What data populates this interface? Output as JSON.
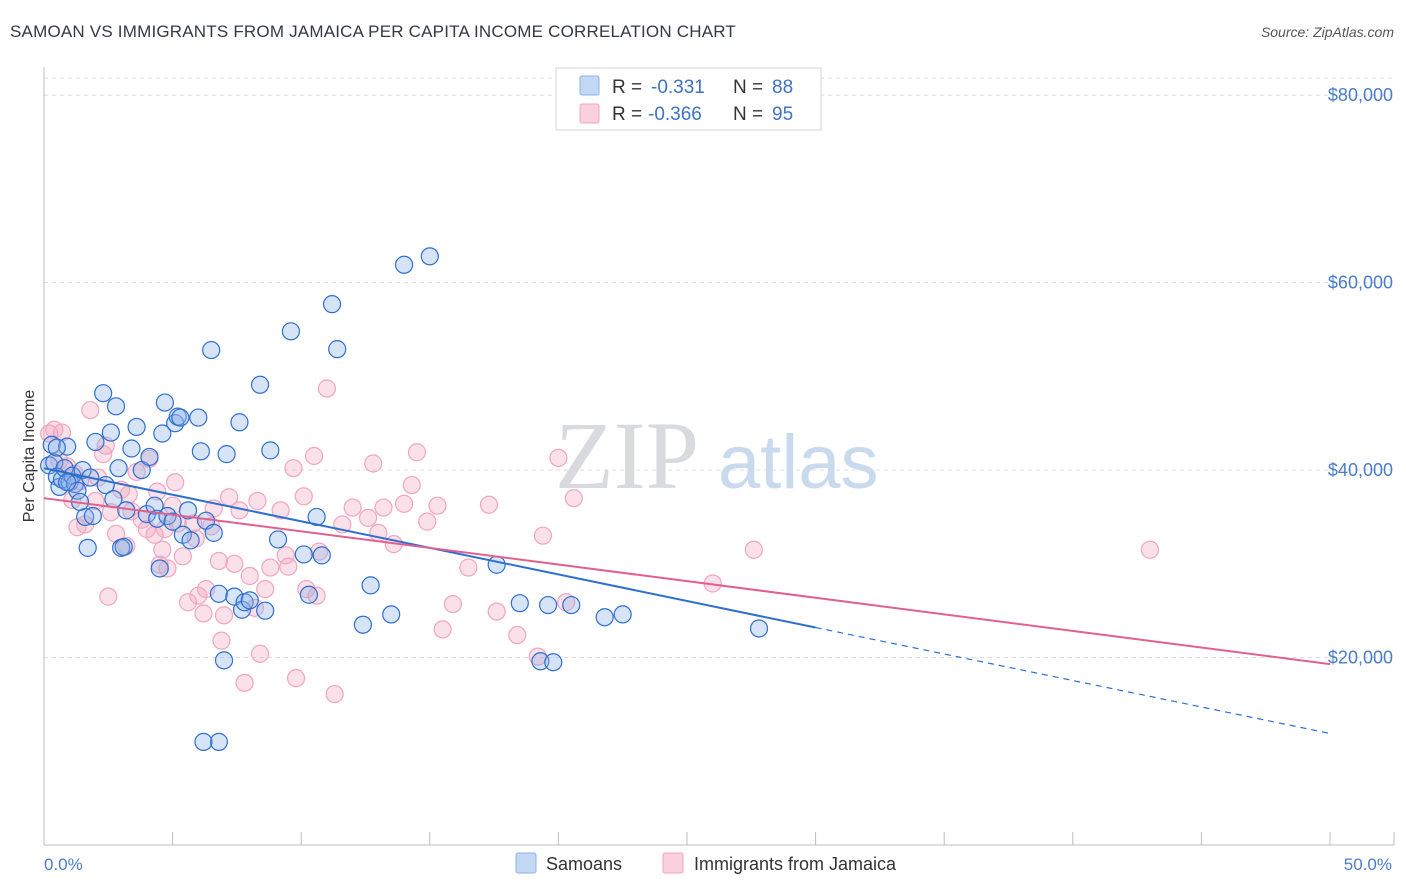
{
  "header": {
    "title": "SAMOAN VS IMMIGRANTS FROM JAMAICA PER CAPITA INCOME CORRELATION CHART",
    "source": "Source: ZipAtlas.com"
  },
  "watermark": {
    "zip": "ZIP",
    "atlas": "atlas"
  },
  "colors": {
    "samoan": "#8bb3e8",
    "samoan_line": "#2e6fcf",
    "jamaica": "#f2a5bf",
    "jamaica_line": "#e0608f",
    "tick_text": "#4a7cc9",
    "grid": "#dcdcdc"
  },
  "stats": {
    "samoan": {
      "r_label": "R =",
      "r_value": "-0.331",
      "n_label": "N =",
      "n_value": "88"
    },
    "jamaica": {
      "r_label": "R =",
      "r_value": "-0.366",
      "n_label": "N =",
      "n_value": "95"
    }
  },
  "chart_data": {
    "type": "scatter",
    "ylabel": "Per Capita Income",
    "xlim": [
      0,
      50
    ],
    "ylim": [
      0,
      83000
    ],
    "x_tick_labels": [
      "0.0%",
      "50.0%"
    ],
    "y_ticks": [
      20000,
      40000,
      60000,
      80000
    ],
    "y_tick_labels": [
      "$20,000",
      "$40,000",
      "$60,000",
      "$80,000"
    ],
    "grid": true,
    "legend_position": "bottom-center",
    "series": [
      {
        "name": "Samoans",
        "trend": {
          "x": [
            0,
            30
          ],
          "y": [
            40200,
            23200
          ],
          "dashed_to": [
            50,
            11900
          ]
        },
        "points": [
          [
            0.2,
            40500
          ],
          [
            0.3,
            42700
          ],
          [
            0.4,
            40800
          ],
          [
            0.5,
            39300
          ],
          [
            0.6,
            38200
          ],
          [
            0.7,
            39000
          ],
          [
            0.8,
            40200
          ],
          [
            0.9,
            42500
          ],
          [
            1.0,
            38700
          ],
          [
            1.1,
            39400
          ],
          [
            1.2,
            38500
          ],
          [
            1.3,
            37800
          ],
          [
            1.5,
            40000
          ],
          [
            1.6,
            35000
          ],
          [
            1.7,
            31700
          ],
          [
            1.8,
            39200
          ],
          [
            2.0,
            43000
          ],
          [
            2.3,
            48200
          ],
          [
            2.4,
            38400
          ],
          [
            2.6,
            44000
          ],
          [
            2.8,
            46800
          ],
          [
            2.9,
            40200
          ],
          [
            3.0,
            31700
          ],
          [
            3.2,
            35700
          ],
          [
            3.4,
            42300
          ],
          [
            3.6,
            44600
          ],
          [
            3.8,
            40000
          ],
          [
            4.0,
            35300
          ],
          [
            4.1,
            41400
          ],
          [
            4.3,
            36200
          ],
          [
            4.4,
            34800
          ],
          [
            4.5,
            29500
          ],
          [
            4.6,
            43900
          ],
          [
            4.7,
            47200
          ],
          [
            4.8,
            35100
          ],
          [
            5.0,
            34500
          ],
          [
            5.1,
            45000
          ],
          [
            5.2,
            45700
          ],
          [
            5.3,
            45600
          ],
          [
            5.4,
            33100
          ],
          [
            5.6,
            35700
          ],
          [
            6.0,
            45600
          ],
          [
            6.1,
            42000
          ],
          [
            6.3,
            34600
          ],
          [
            6.5,
            52800
          ],
          [
            6.6,
            33300
          ],
          [
            6.8,
            26800
          ],
          [
            7.0,
            19700
          ],
          [
            7.1,
            41700
          ],
          [
            7.4,
            26500
          ],
          [
            7.6,
            45100
          ],
          [
            7.7,
            25100
          ],
          [
            7.8,
            25900
          ],
          [
            8.0,
            26100
          ],
          [
            8.4,
            49100
          ],
          [
            8.6,
            25000
          ],
          [
            8.8,
            42100
          ],
          [
            9.1,
            32600
          ],
          [
            9.6,
            54800
          ],
          [
            10.1,
            31000
          ],
          [
            10.3,
            26700
          ],
          [
            10.6,
            35000
          ],
          [
            10.8,
            30900
          ],
          [
            11.2,
            57700
          ],
          [
            11.4,
            52900
          ],
          [
            12.4,
            23500
          ],
          [
            12.7,
            27700
          ],
          [
            13.5,
            24600
          ],
          [
            14.0,
            61900
          ],
          [
            15.0,
            62800
          ],
          [
            17.6,
            29900
          ],
          [
            18.5,
            25800
          ],
          [
            19.3,
            19600
          ],
          [
            19.6,
            25600
          ],
          [
            19.8,
            19500
          ],
          [
            20.5,
            25600
          ],
          [
            21.8,
            24300
          ],
          [
            22.5,
            24600
          ],
          [
            27.8,
            23100
          ],
          [
            6.8,
            11000
          ],
          [
            6.2,
            11000
          ],
          [
            3.1,
            31800
          ],
          [
            5.7,
            32500
          ],
          [
            1.9,
            35100
          ],
          [
            0.5,
            42400
          ],
          [
            1.4,
            36600
          ],
          [
            2.7,
            36900
          ],
          [
            0.9,
            38700
          ]
        ]
      },
      {
        "name": "Immigrants from Jamaica",
        "trend": {
          "x": [
            0,
            50
          ],
          "y": [
            37000,
            19300
          ]
        },
        "points": [
          [
            0.2,
            43900
          ],
          [
            0.4,
            44300
          ],
          [
            0.6,
            41000
          ],
          [
            0.7,
            44000
          ],
          [
            0.9,
            40400
          ],
          [
            1.1,
            36800
          ],
          [
            1.2,
            39600
          ],
          [
            1.4,
            38800
          ],
          [
            1.6,
            34200
          ],
          [
            1.8,
            46400
          ],
          [
            2.0,
            36700
          ],
          [
            2.1,
            39200
          ],
          [
            2.3,
            41700
          ],
          [
            2.4,
            42600
          ],
          [
            2.6,
            35500
          ],
          [
            2.8,
            33200
          ],
          [
            3.0,
            37900
          ],
          [
            3.2,
            31900
          ],
          [
            3.4,
            35600
          ],
          [
            3.6,
            39800
          ],
          [
            3.8,
            34700
          ],
          [
            4.0,
            33700
          ],
          [
            4.1,
            41200
          ],
          [
            4.3,
            33100
          ],
          [
            4.4,
            37700
          ],
          [
            4.5,
            29900
          ],
          [
            4.6,
            31500
          ],
          [
            4.8,
            29500
          ],
          [
            5.0,
            36200
          ],
          [
            5.2,
            34300
          ],
          [
            5.4,
            30800
          ],
          [
            5.6,
            25900
          ],
          [
            5.8,
            34300
          ],
          [
            5.9,
            32700
          ],
          [
            6.0,
            26600
          ],
          [
            6.2,
            24700
          ],
          [
            6.3,
            27300
          ],
          [
            6.5,
            34000
          ],
          [
            6.6,
            35900
          ],
          [
            6.8,
            30300
          ],
          [
            7.0,
            24500
          ],
          [
            7.2,
            37100
          ],
          [
            7.4,
            30000
          ],
          [
            7.6,
            35700
          ],
          [
            7.8,
            17300
          ],
          [
            8.0,
            28700
          ],
          [
            8.2,
            25300
          ],
          [
            8.3,
            36700
          ],
          [
            8.6,
            27300
          ],
          [
            8.8,
            29600
          ],
          [
            9.2,
            35700
          ],
          [
            9.4,
            30900
          ],
          [
            9.5,
            29700
          ],
          [
            9.7,
            40200
          ],
          [
            9.8,
            17800
          ],
          [
            10.1,
            37200
          ],
          [
            10.2,
            27300
          ],
          [
            10.5,
            41500
          ],
          [
            10.7,
            31300
          ],
          [
            11.0,
            48700
          ],
          [
            11.3,
            16100
          ],
          [
            11.6,
            34200
          ],
          [
            12.0,
            36000
          ],
          [
            12.6,
            34900
          ],
          [
            13.0,
            33300
          ],
          [
            13.2,
            36000
          ],
          [
            13.6,
            32100
          ],
          [
            14.0,
            36400
          ],
          [
            14.3,
            38400
          ],
          [
            14.5,
            41900
          ],
          [
            14.9,
            34500
          ],
          [
            15.3,
            36200
          ],
          [
            15.5,
            23000
          ],
          [
            15.9,
            25700
          ],
          [
            16.5,
            29600
          ],
          [
            17.3,
            36300
          ],
          [
            17.6,
            24900
          ],
          [
            18.4,
            22400
          ],
          [
            19.2,
            20100
          ],
          [
            19.4,
            33000
          ],
          [
            20.0,
            41300
          ],
          [
            20.3,
            25900
          ],
          [
            20.6,
            37000
          ],
          [
            26.0,
            27900
          ],
          [
            27.6,
            31500
          ],
          [
            43.0,
            31500
          ],
          [
            1.3,
            33900
          ],
          [
            3.3,
            37400
          ],
          [
            6.9,
            21800
          ],
          [
            5.1,
            38700
          ],
          [
            2.5,
            26500
          ],
          [
            8.4,
            20400
          ],
          [
            10.6,
            26600
          ],
          [
            12.8,
            40700
          ],
          [
            4.7,
            33700
          ]
        ]
      }
    ]
  }
}
